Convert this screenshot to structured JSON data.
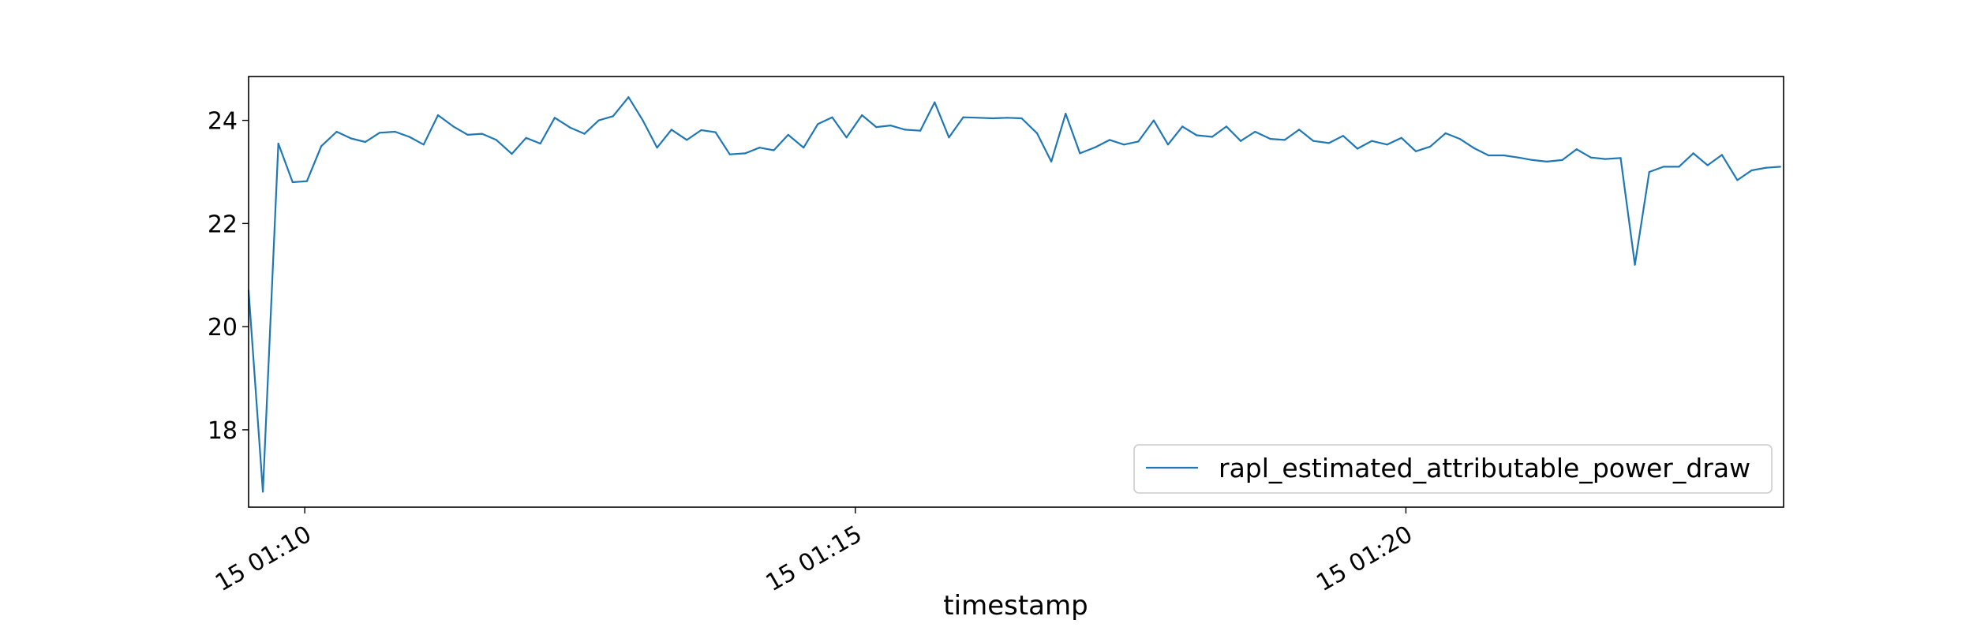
{
  "chart_data": {
    "type": "line",
    "title": "",
    "xlabel": "timestamp",
    "ylabel": "",
    "x_ticks": [
      "15 01:10",
      "15 01:15",
      "15 01:20"
    ],
    "x_tick_minutes": [
      10,
      15,
      20
    ],
    "xlim_minutes": [
      9.49,
      23.43
    ],
    "y_ticks": [
      18,
      20,
      22,
      24
    ],
    "ylim": [
      16.5,
      24.85
    ],
    "grid": false,
    "legend_position": "lower-right",
    "colors": {
      "line": "#1f77b4",
      "axes": "#000000",
      "legend_border": "#cccccc"
    },
    "series": [
      {
        "name": "rapl_estimated_attributable_power_draw",
        "x_minutes": [
          9.49,
          9.62,
          9.76,
          9.89,
          10.02,
          10.15,
          10.29,
          10.42,
          10.55,
          10.68,
          10.82,
          10.95,
          11.08,
          11.21,
          11.35,
          11.48,
          11.61,
          11.74,
          11.88,
          12.01,
          12.14,
          12.27,
          12.41,
          12.54,
          12.67,
          12.8,
          12.94,
          13.07,
          13.2,
          13.33,
          13.47,
          13.6,
          13.73,
          13.86,
          14.0,
          14.13,
          14.26,
          14.39,
          14.53,
          14.66,
          14.79,
          14.92,
          15.06,
          15.19,
          15.32,
          15.45,
          15.59,
          15.72,
          15.85,
          15.98,
          16.12,
          16.25,
          16.38,
          16.51,
          16.65,
          16.78,
          16.91,
          17.04,
          17.18,
          17.31,
          17.44,
          17.57,
          17.71,
          17.84,
          17.97,
          18.1,
          18.24,
          18.37,
          18.5,
          18.63,
          18.77,
          18.9,
          19.03,
          19.16,
          19.3,
          19.43,
          19.56,
          19.69,
          19.83,
          19.96,
          20.09,
          20.22,
          20.36,
          20.49,
          20.62,
          20.75,
          20.89,
          21.02,
          21.15,
          21.28,
          21.42,
          21.55,
          21.68,
          21.81,
          21.95,
          22.08,
          22.21,
          22.34,
          22.48,
          22.61,
          22.74,
          22.87,
          23.01,
          23.14,
          23.27,
          23.4
        ],
        "values": [
          20.7,
          16.8,
          23.55,
          22.8,
          22.82,
          23.5,
          23.78,
          23.65,
          23.58,
          23.76,
          23.78,
          23.68,
          23.53,
          24.1,
          23.88,
          23.72,
          23.74,
          23.62,
          23.35,
          23.66,
          23.55,
          24.05,
          23.86,
          23.74,
          24.0,
          24.08,
          24.45,
          24.0,
          23.47,
          23.82,
          23.62,
          23.81,
          23.77,
          23.34,
          23.36,
          23.47,
          23.42,
          23.72,
          23.47,
          23.93,
          24.06,
          23.67,
          24.1,
          23.87,
          23.9,
          23.82,
          23.8,
          24.35,
          23.67,
          24.06,
          24.05,
          24.04,
          24.05,
          24.04,
          23.75,
          23.2,
          24.13,
          23.36,
          23.48,
          23.62,
          23.53,
          23.59,
          24.0,
          23.53,
          23.88,
          23.71,
          23.68,
          23.88,
          23.6,
          23.78,
          23.64,
          23.62,
          23.82,
          23.6,
          23.56,
          23.7,
          23.45,
          23.6,
          23.53,
          23.66,
          23.4,
          23.49,
          23.75,
          23.64,
          23.46,
          23.32,
          23.32,
          23.28,
          23.23,
          23.2,
          23.23,
          23.44,
          23.28,
          23.25,
          23.27,
          21.2,
          23.0,
          23.1,
          23.1,
          23.36,
          23.13,
          23.33,
          22.84,
          23.03,
          23.08,
          23.1
        ]
      }
    ]
  }
}
